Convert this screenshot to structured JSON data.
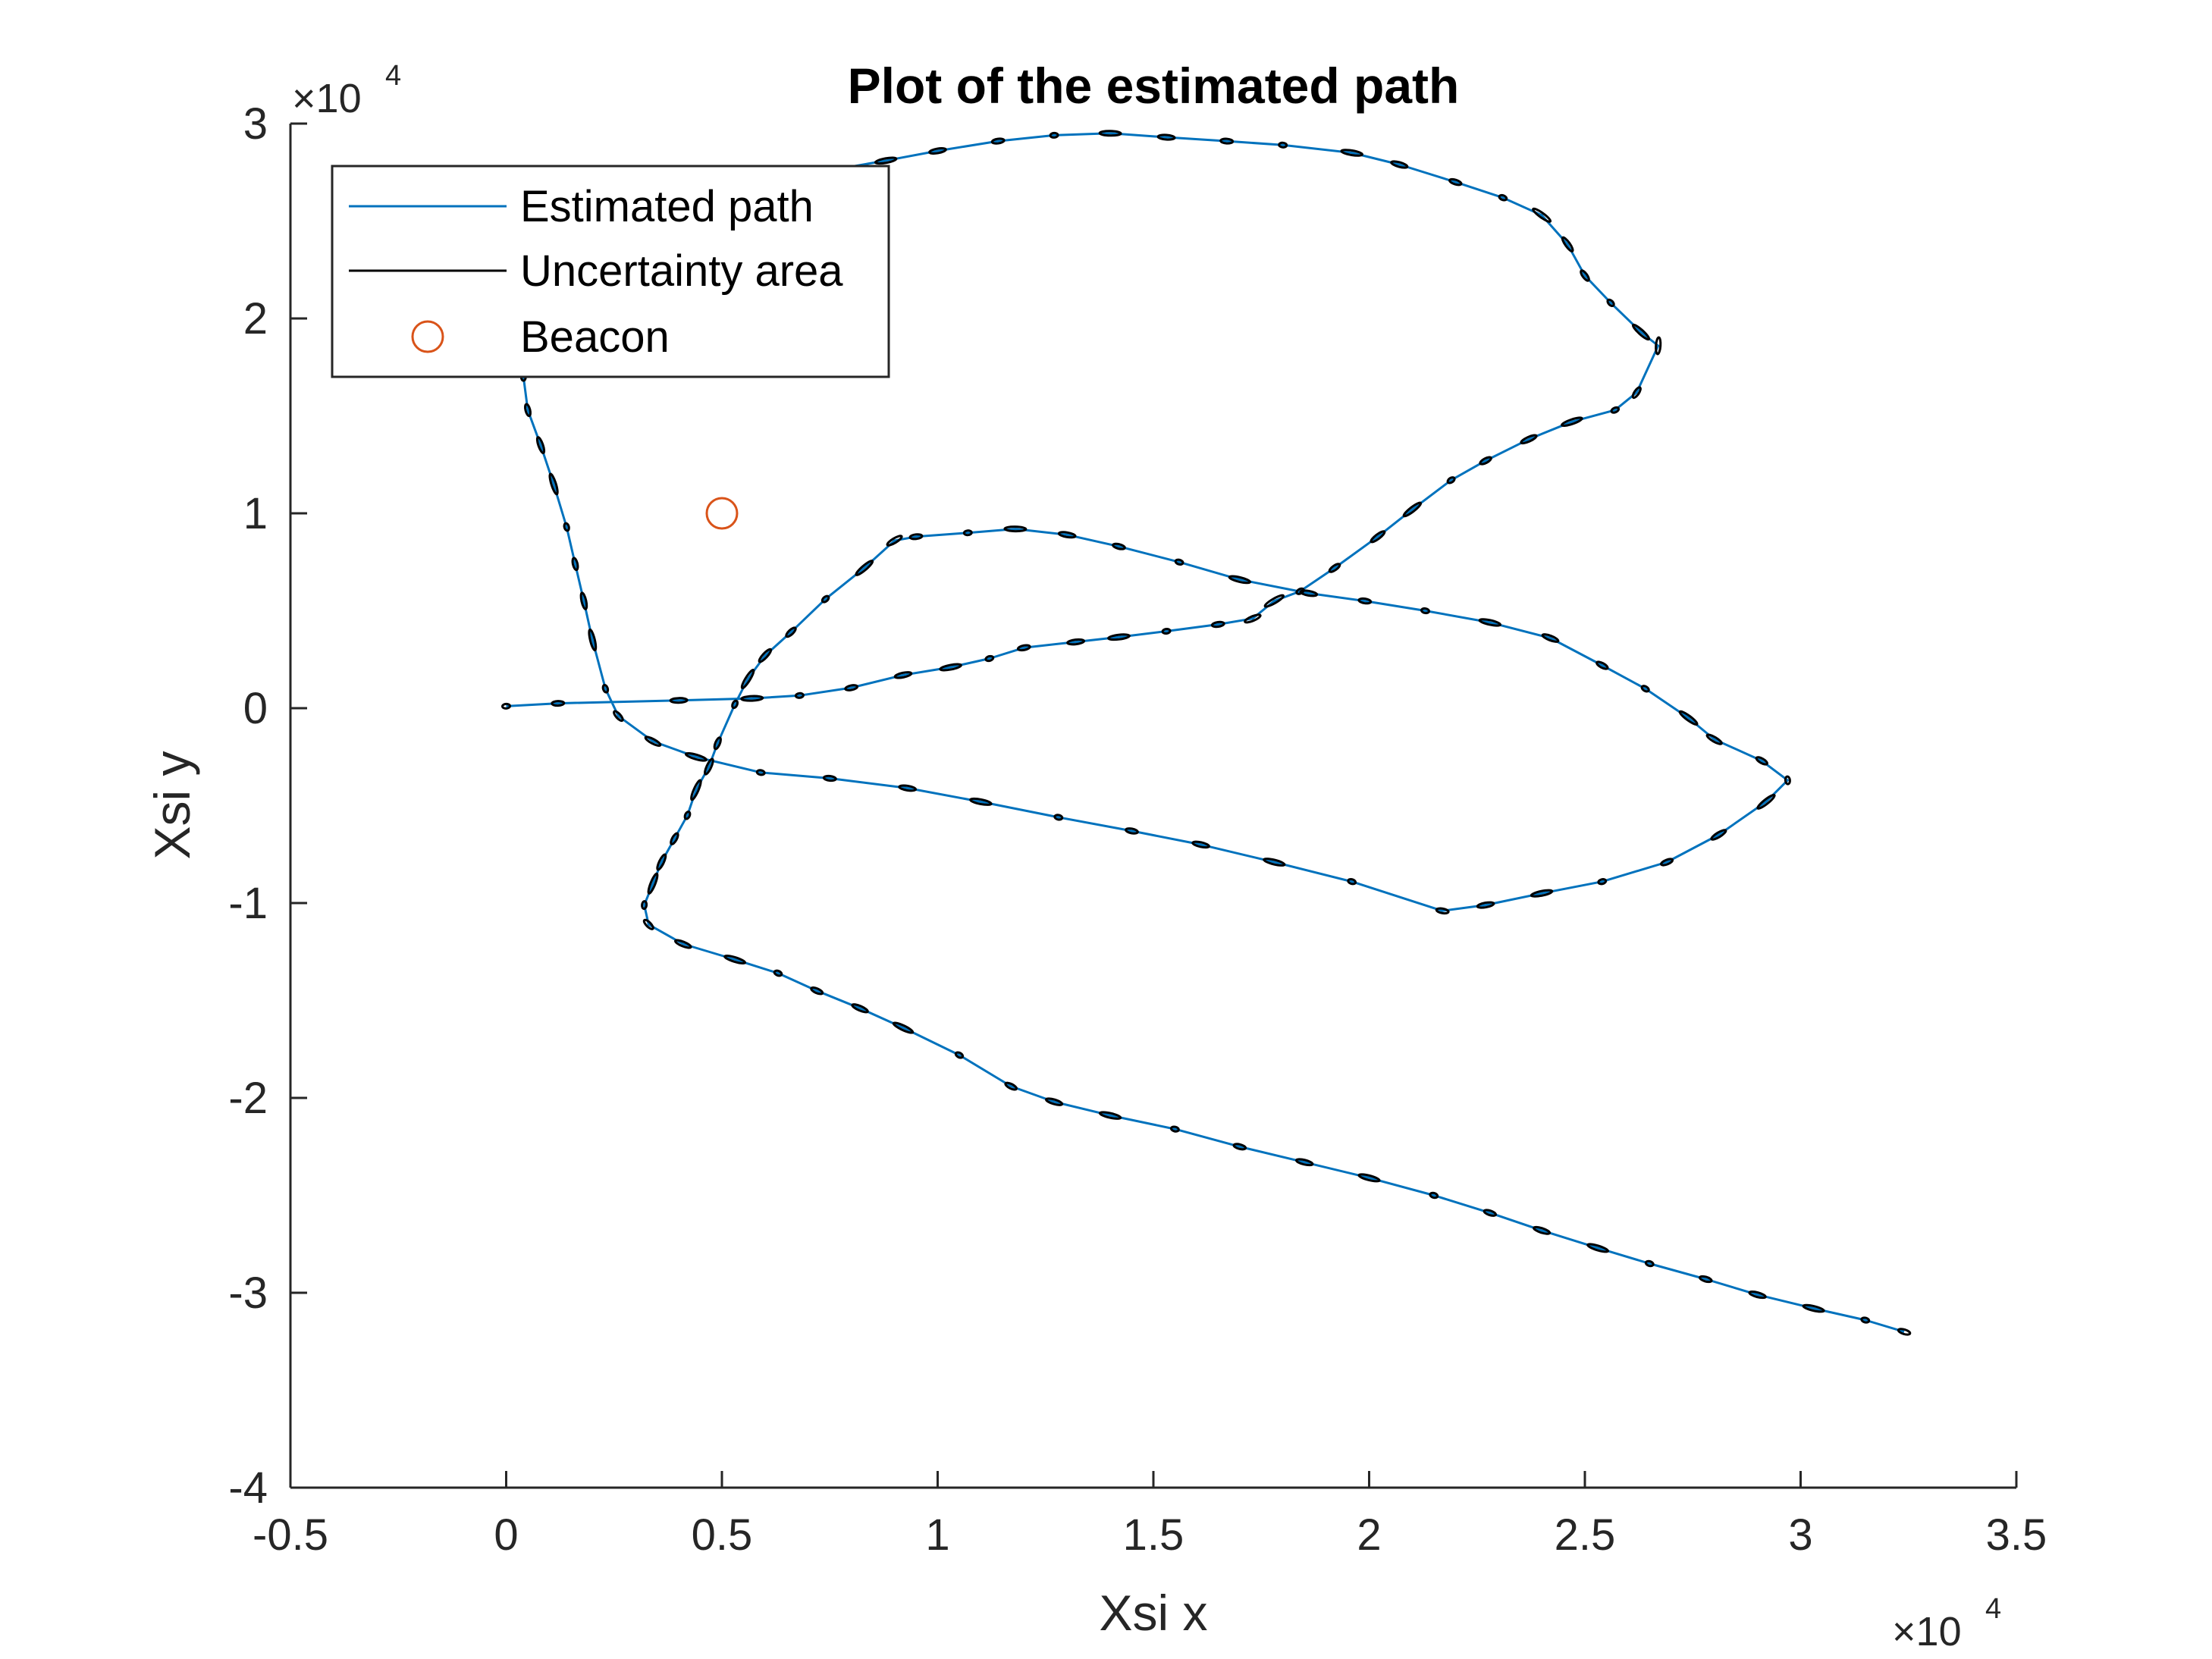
{
  "chart_data": {
    "type": "line",
    "title": "Plot of the estimated path",
    "xlabel": "Xsi x",
    "ylabel": "Xsi y",
    "x_exponent_label": "×10",
    "x_exponent_power": "4",
    "y_exponent_label": "×10",
    "y_exponent_power": "4",
    "xlim": [
      -5000,
      35000
    ],
    "ylim": [
      -40000,
      30000
    ],
    "xticks": [
      -5000,
      0,
      5000,
      10000,
      15000,
      20000,
      25000,
      30000,
      35000
    ],
    "xtick_labels": [
      "-0.5",
      "0",
      "0.5",
      "1",
      "1.5",
      "2",
      "2.5",
      "3",
      "3.5"
    ],
    "yticks": [
      -40000,
      -30000,
      -20000,
      -10000,
      0,
      10000,
      20000,
      30000
    ],
    "ytick_labels": [
      "-4",
      "-3",
      "-2",
      "-1",
      "0",
      "1",
      "2",
      "3"
    ],
    "grid": false,
    "legend_position": "top-left",
    "legend": [
      {
        "label": "Estimated path",
        "style": "line",
        "color": "#0072BD"
      },
      {
        "label": "Uncertainty area",
        "style": "line",
        "color": "#000000"
      },
      {
        "label": "Beacon",
        "style": "circle",
        "color": "#D95319"
      }
    ],
    "series": [
      {
        "name": "Estimated path",
        "color": "#0072BD",
        "points": [
          [
            0,
            100
          ],
          [
            1200,
            250
          ],
          [
            4000,
            400
          ],
          [
            5700,
            500
          ],
          [
            6800,
            650
          ],
          [
            8000,
            1050
          ],
          [
            9200,
            1700
          ],
          [
            10300,
            2100
          ],
          [
            11200,
            2550
          ],
          [
            12000,
            3100
          ],
          [
            13200,
            3400
          ],
          [
            14200,
            3650
          ],
          [
            15300,
            3950
          ],
          [
            16500,
            4300
          ],
          [
            17300,
            4600
          ],
          [
            17800,
            5500
          ],
          [
            18400,
            6000
          ],
          [
            19200,
            7200
          ],
          [
            20200,
            8800
          ],
          [
            21000,
            10200
          ],
          [
            21900,
            11700
          ],
          [
            22700,
            12700
          ],
          [
            23700,
            13800
          ],
          [
            24700,
            14700
          ],
          [
            25700,
            15300
          ],
          [
            26200,
            16200
          ],
          [
            26700,
            18600
          ],
          [
            26300,
            19300
          ],
          [
            25600,
            20800
          ],
          [
            25000,
            22200
          ],
          [
            24600,
            23800
          ],
          [
            24000,
            25300
          ],
          [
            23100,
            26200
          ],
          [
            22000,
            27000
          ],
          [
            20700,
            27900
          ],
          [
            19600,
            28500
          ],
          [
            18000,
            28900
          ],
          [
            16700,
            29100
          ],
          [
            15300,
            29300
          ],
          [
            14000,
            29500
          ],
          [
            12700,
            29400
          ],
          [
            11400,
            29100
          ],
          [
            10000,
            28600
          ],
          [
            8800,
            28100
          ],
          [
            7500,
            27600
          ],
          [
            6200,
            27100
          ],
          [
            4800,
            26400
          ],
          [
            3400,
            25400
          ],
          [
            2200,
            24100
          ],
          [
            1200,
            22600
          ],
          [
            700,
            21000
          ],
          [
            500,
            19000
          ],
          [
            400,
            17000
          ],
          [
            500,
            15300
          ],
          [
            800,
            13500
          ],
          [
            1100,
            11500
          ],
          [
            1400,
            9300
          ],
          [
            1600,
            7400
          ],
          [
            1800,
            5500
          ],
          [
            2000,
            3500
          ],
          [
            2300,
            1000
          ],
          [
            2600,
            -400
          ],
          [
            3400,
            -1700
          ],
          [
            4400,
            -2500
          ],
          [
            5900,
            -3300
          ],
          [
            7500,
            -3600
          ],
          [
            9300,
            -4100
          ],
          [
            11000,
            -4800
          ],
          [
            12800,
            -5600
          ],
          [
            14500,
            -6300
          ],
          [
            16100,
            -7000
          ],
          [
            17800,
            -7900
          ],
          [
            19600,
            -8900
          ],
          [
            21700,
            -10400
          ],
          [
            22700,
            -10100
          ],
          [
            24000,
            -9500
          ],
          [
            25400,
            -8900
          ],
          [
            26900,
            -7900
          ],
          [
            28100,
            -6500
          ],
          [
            29200,
            -4800
          ],
          [
            29700,
            -3700
          ],
          [
            29100,
            -2700
          ],
          [
            28000,
            -1600
          ],
          [
            27400,
            -500
          ],
          [
            26400,
            1000
          ],
          [
            25400,
            2200
          ],
          [
            24200,
            3600
          ],
          [
            22800,
            4400
          ],
          [
            21300,
            5000
          ],
          [
            19900,
            5500
          ],
          [
            18600,
            5900
          ],
          [
            17000,
            6600
          ],
          [
            15600,
            7500
          ],
          [
            14200,
            8300
          ],
          [
            13000,
            8900
          ],
          [
            11800,
            9200
          ],
          [
            10700,
            9000
          ],
          [
            9500,
            8800
          ],
          [
            9000,
            8600
          ],
          [
            8300,
            7200
          ],
          [
            7400,
            5600
          ],
          [
            6600,
            3900
          ],
          [
            6000,
            2700
          ],
          [
            5600,
            1500
          ],
          [
            5300,
            200
          ],
          [
            4900,
            -1800
          ],
          [
            4700,
            -3000
          ],
          [
            4400,
            -4200
          ],
          [
            4200,
            -5500
          ],
          [
            3900,
            -6700
          ],
          [
            3600,
            -7900
          ],
          [
            3400,
            -9000
          ],
          [
            3200,
            -10100
          ],
          [
            3300,
            -11100
          ],
          [
            4100,
            -12100
          ],
          [
            5300,
            -12900
          ],
          [
            6300,
            -13600
          ],
          [
            7200,
            -14500
          ],
          [
            8200,
            -15400
          ],
          [
            9200,
            -16400
          ],
          [
            10500,
            -17800
          ],
          [
            11700,
            -19400
          ],
          [
            12700,
            -20200
          ],
          [
            14000,
            -20900
          ],
          [
            15500,
            -21600
          ],
          [
            17000,
            -22500
          ],
          [
            18500,
            -23300
          ],
          [
            20000,
            -24100
          ],
          [
            21500,
            -25000
          ],
          [
            22800,
            -25900
          ],
          [
            24000,
            -26800
          ],
          [
            25300,
            -27700
          ],
          [
            26500,
            -28500
          ],
          [
            27800,
            -29300
          ],
          [
            29000,
            -30100
          ],
          [
            30300,
            -30800
          ],
          [
            31500,
            -31400
          ],
          [
            32400,
            -32000
          ]
        ]
      }
    ],
    "beacon": {
      "name": "Beacon",
      "x": 5000,
      "y": 10000,
      "color": "#D95319"
    },
    "uncertainty_color": "#000000"
  }
}
